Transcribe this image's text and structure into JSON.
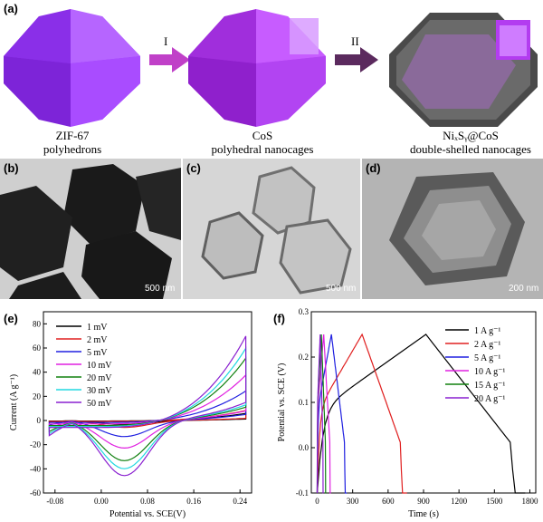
{
  "panel_labels": {
    "a": "(a)",
    "b": "(b)",
    "c": "(c)",
    "d": "(d)",
    "e": "(e)",
    "f": "(f)"
  },
  "schematic": {
    "step1": "I",
    "step2": "II",
    "captions": [
      {
        "line1": "ZIF-67",
        "line2": "polyhedrons"
      },
      {
        "line1": "CoS",
        "line2": "polyhedral nanocages"
      },
      {
        "line1": "NiₓSᵧ@CoS",
        "line2": "double-shelled nanocages"
      }
    ],
    "colors": {
      "zif": "#9b3dfb",
      "cos": "#b33cf0",
      "arrow1": "#c040c8",
      "arrow2": "#5b2a5e",
      "shell": "#4a4a4a"
    }
  },
  "tem": {
    "scale_b": "500 nm",
    "scale_c": "500 nm",
    "scale_d": "200 nm"
  },
  "chart_data": [
    {
      "type": "line",
      "panel": "e",
      "xlabel": "Potential vs. SCE(V)",
      "ylabel": "Current (A g⁻¹)",
      "xlim": [
        -0.1,
        0.26
      ],
      "ylim": [
        -60,
        90
      ],
      "xticks": [
        "-0.08",
        "0.00",
        "0.08",
        "0.16",
        "0.24"
      ],
      "yticks": [
        "-60",
        "-40",
        "-20",
        "0",
        "20",
        "40",
        "60",
        "80"
      ],
      "series": [
        {
          "name": "1 mV",
          "color": "#000000",
          "vmax": 7,
          "vmin": -3.5
        },
        {
          "name": "2 mV",
          "color": "#e02020",
          "vmax": 10,
          "vmin": -6
        },
        {
          "name": "5 mV",
          "color": "#2020e0",
          "vmax": 29,
          "vmin": -14
        },
        {
          "name": "10 mV",
          "color": "#e020e0",
          "vmax": 45,
          "vmin": -24
        },
        {
          "name": "20 mV",
          "color": "#10800f",
          "vmax": 62,
          "vmin": -35
        },
        {
          "name": "30 mV",
          "color": "#20d8e0",
          "vmax": 72,
          "vmin": -42
        },
        {
          "name": "50 mV",
          "color": "#8a20d0",
          "vmax": 84,
          "vmin": -48
        }
      ]
    },
    {
      "type": "line",
      "panel": "f",
      "xlabel": "Time (s)",
      "ylabel": "Potential vs. SCE (V)",
      "xlim": [
        -50,
        1850
      ],
      "ylim": [
        -0.1,
        0.3
      ],
      "xticks": [
        "0",
        "300",
        "600",
        "900",
        "1200",
        "1500",
        "1800"
      ],
      "yticks": [
        "-0.1",
        "0.0",
        "0.1",
        "0.2",
        "0.3"
      ],
      "series": [
        {
          "name": "1 A g⁻¹",
          "color": "#000000",
          "t_peak": 920,
          "t_end": 1760
        },
        {
          "name": "2 A g⁻¹",
          "color": "#e02020",
          "t_peak": 380,
          "t_end": 760
        },
        {
          "name": "5 A g⁻¹",
          "color": "#2020e0",
          "t_peak": 120,
          "t_end": 250
        },
        {
          "name": "10 A g⁻¹",
          "color": "#e020e0",
          "t_peak": 55,
          "t_end": 115
        },
        {
          "name": "15 A g⁻¹",
          "color": "#10800f",
          "t_peak": 35,
          "t_end": 75
        },
        {
          "name": "20 A g⁻¹",
          "color": "#8a20d0",
          "t_peak": 25,
          "t_end": 52
        }
      ]
    }
  ]
}
